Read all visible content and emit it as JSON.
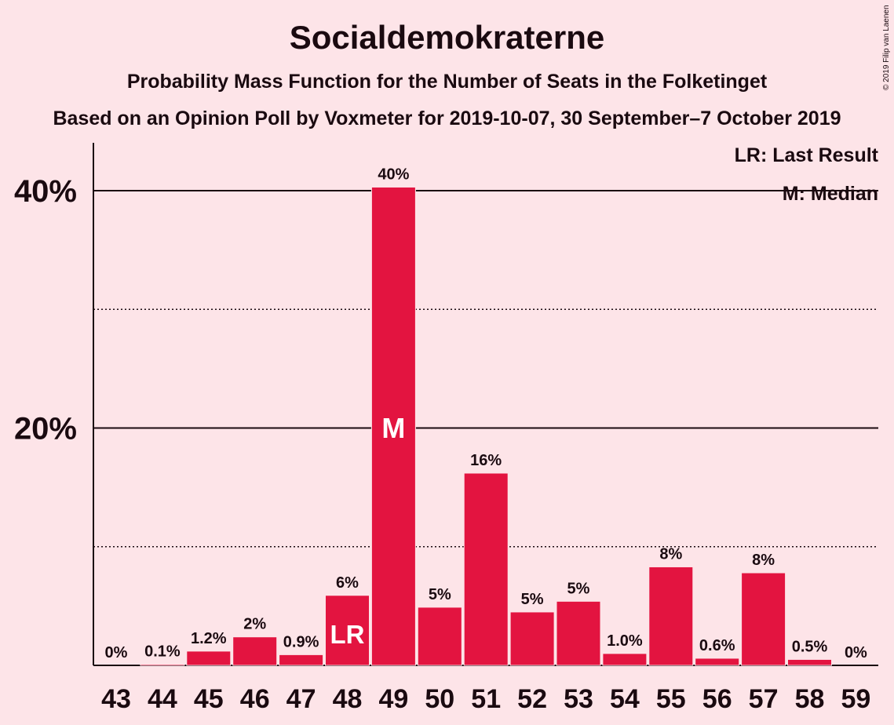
{
  "chart_data": {
    "type": "bar",
    "title": "Socialdemokraterne",
    "subtitle": "Probability Mass Function for the Number of Seats in the Folketinget",
    "subtitle2": "Based on an Opinion Poll by Voxmeter for 2019-10-07, 30 September–7 October 2019",
    "copyright": "© 2019 Filip van Laenen",
    "legend": {
      "last_result": "LR: Last Result",
      "median": "M: Median",
      "placement": "top-right"
    },
    "categories": [
      "43",
      "44",
      "45",
      "46",
      "47",
      "48",
      "49",
      "50",
      "51",
      "52",
      "53",
      "54",
      "55",
      "56",
      "57",
      "58",
      "59"
    ],
    "values": [
      0,
      0.1,
      1.2,
      2.4,
      0.9,
      5.9,
      40.3,
      4.9,
      16.2,
      4.5,
      5.4,
      1.0,
      8.3,
      0.6,
      7.8,
      0.5,
      0
    ],
    "data_labels": [
      "0%",
      "0.1%",
      "1.2%",
      "2%",
      "0.9%",
      "6%",
      "40%",
      "5%",
      "16%",
      "5%",
      "5%",
      "1.0%",
      "8%",
      "0.6%",
      "8%",
      "0.5%",
      "0%"
    ],
    "ylim": [
      0,
      44
    ],
    "yticks": [
      20,
      40
    ],
    "ytick_labels": [
      "20%",
      "40%"
    ],
    "minor_gridlines": [
      10,
      30
    ],
    "last_result": {
      "category": "48",
      "label": "LR"
    },
    "median": {
      "category": "49",
      "label": "M"
    },
    "bar_color": "#e31440",
    "background": "#fde4e8"
  }
}
